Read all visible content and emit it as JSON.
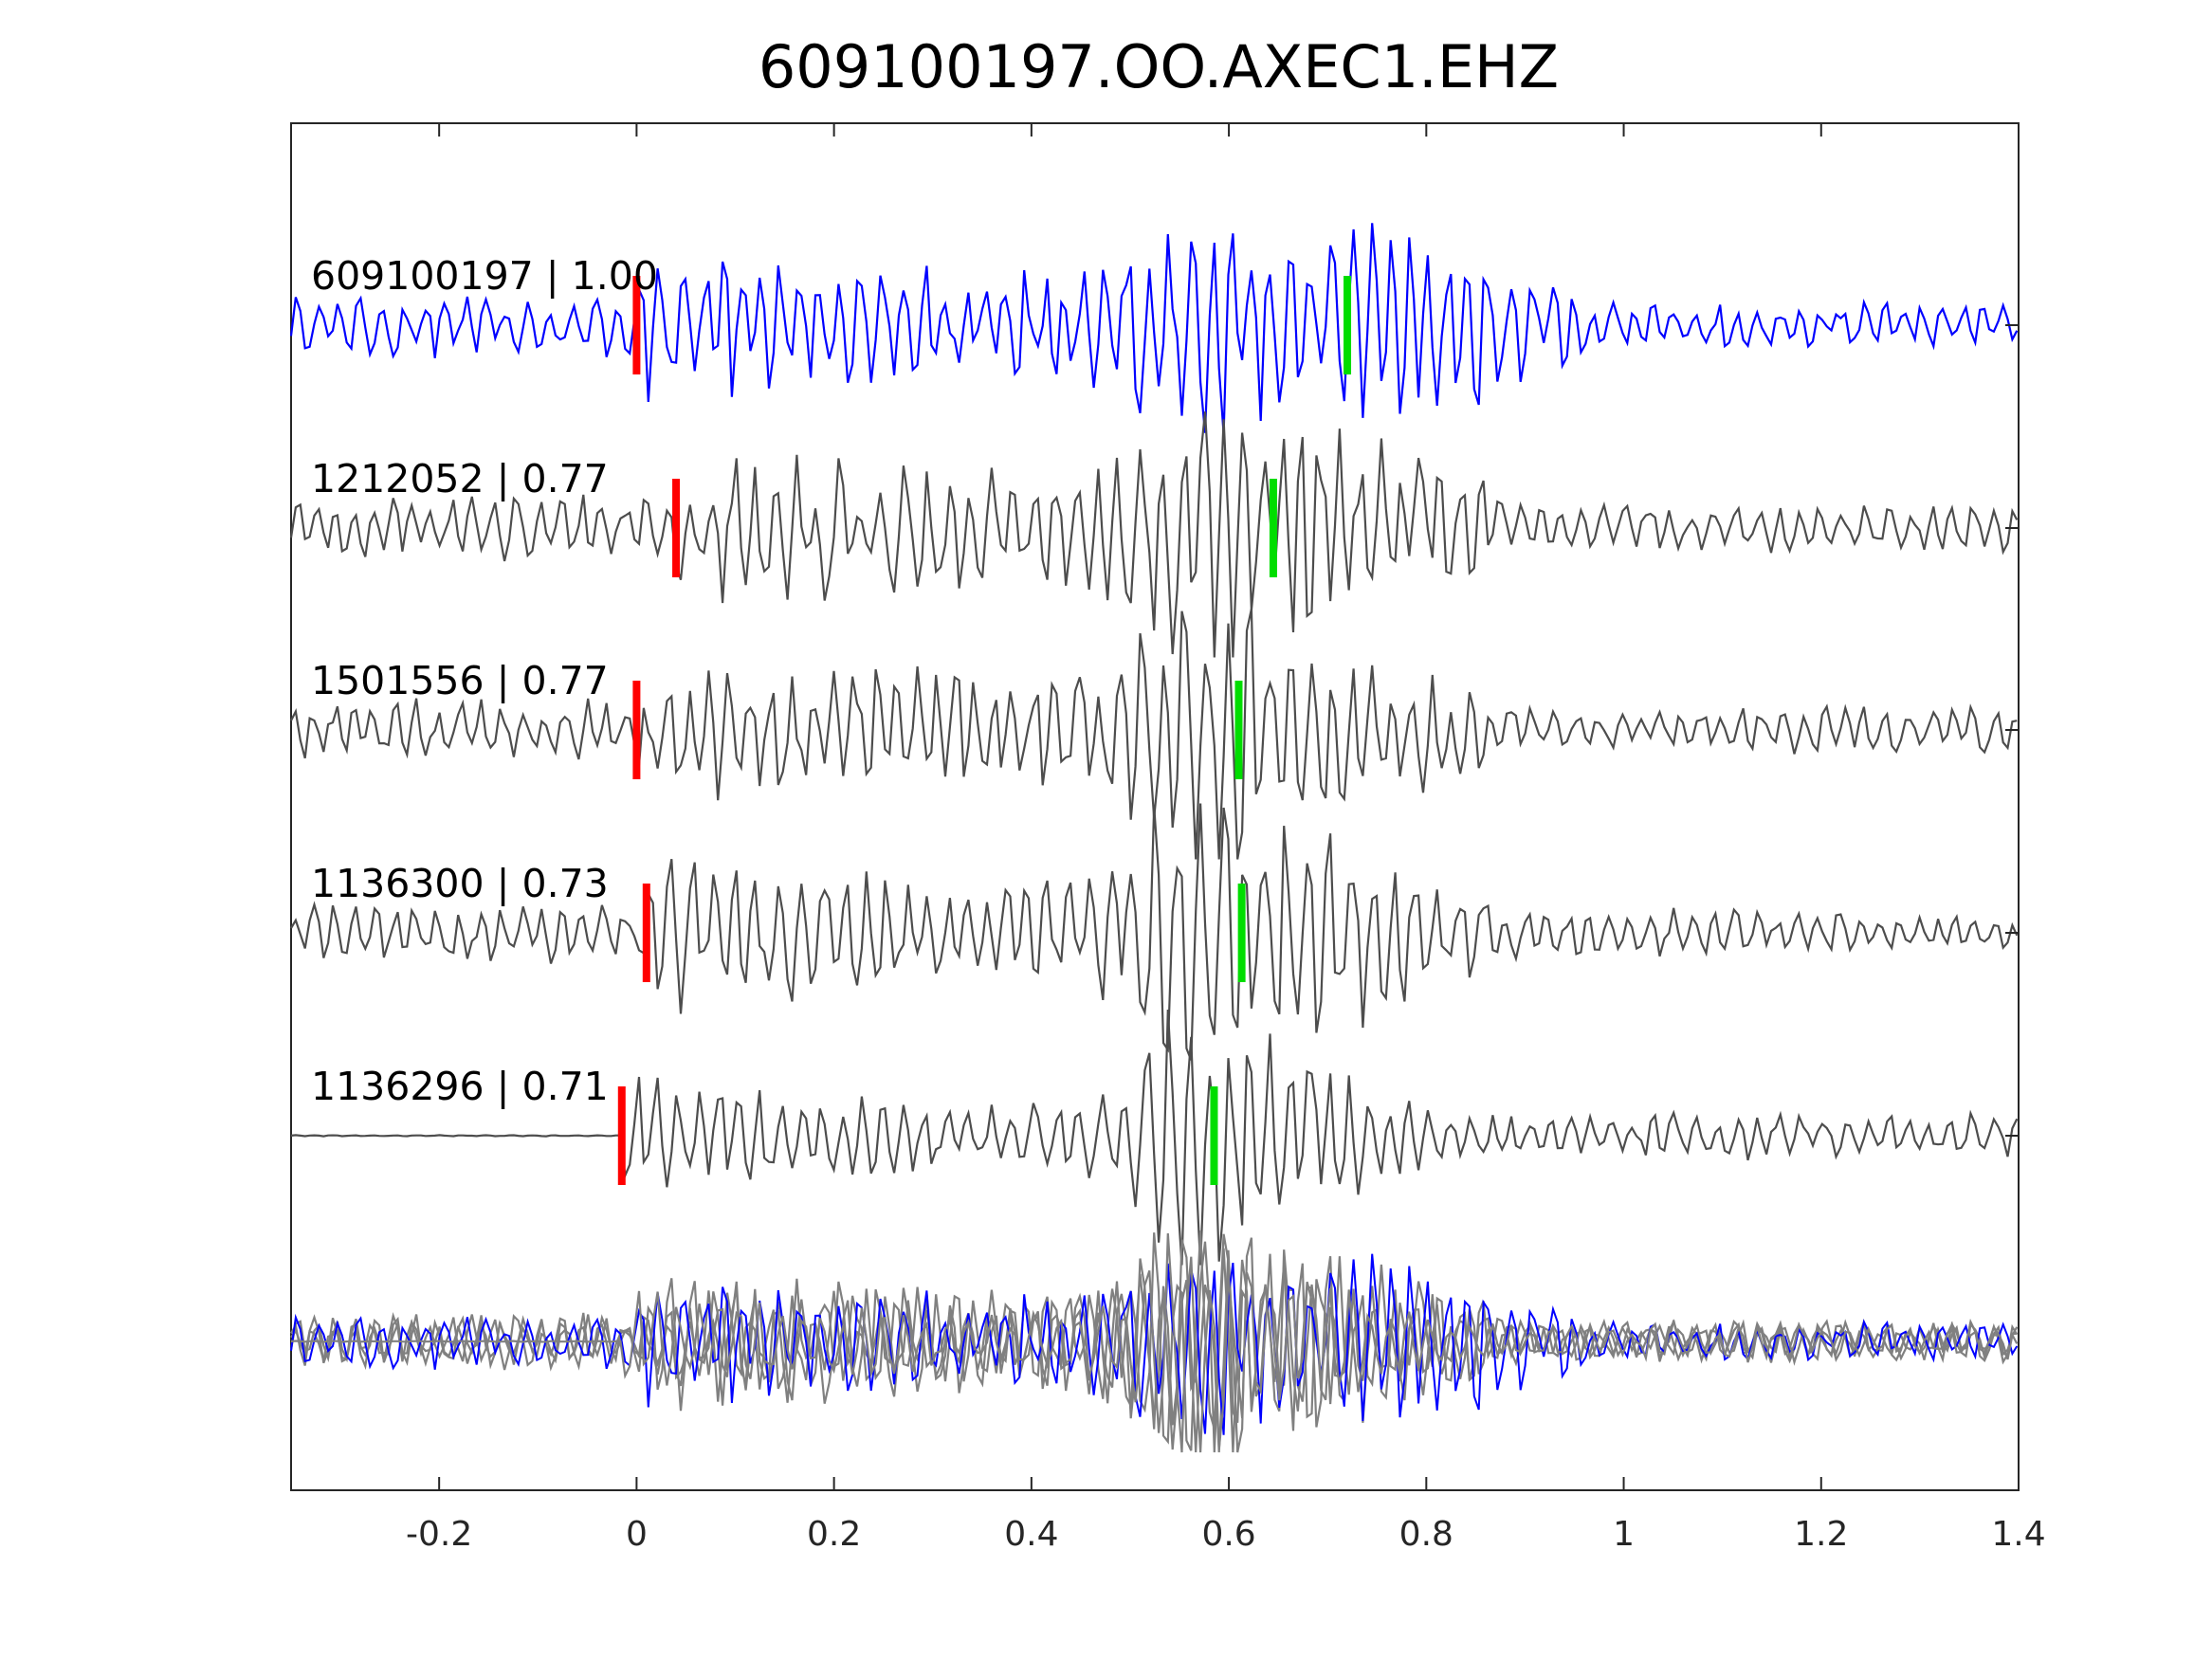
{
  "chart_data": {
    "type": "line",
    "title": "609100197.OO.AXEC1.EHZ",
    "xlabel": "",
    "ylabel": "",
    "xlim": [
      -0.35,
      1.4
    ],
    "grid": false,
    "xticks": [
      {
        "value": -0.2,
        "label": "-0.2"
      },
      {
        "value": 0,
        "label": "0"
      },
      {
        "value": 0.2,
        "label": "0.2"
      },
      {
        "value": 0.4,
        "label": "0.4"
      },
      {
        "value": 0.6,
        "label": "0.6"
      },
      {
        "value": 0.8,
        "label": "0.8"
      },
      {
        "value": 1,
        "label": "1"
      },
      {
        "value": 1.2,
        "label": "1.2"
      },
      {
        "value": 1.4,
        "label": "1.4"
      }
    ],
    "series": [
      {
        "label": "609100197 | 1.00",
        "color": "#0000ff",
        "p_pick": 0.0,
        "s_pick": 0.72
      },
      {
        "label": "1212052 | 0.77",
        "color": "#4d4d4d",
        "p_pick": 0.04,
        "s_pick": 0.645
      },
      {
        "label": "1501556 | 0.77",
        "color": "#4d4d4d",
        "p_pick": 0.0,
        "s_pick": 0.61
      },
      {
        "label": "1136300 | 0.73",
        "color": "#4d4d4d",
        "p_pick": 0.01,
        "s_pick": 0.613
      },
      {
        "label": "1136296 | 0.71",
        "color": "#4d4d4d",
        "p_pick": -0.015,
        "s_pick": 0.585
      }
    ],
    "overlay_color": "#808080",
    "p_pick_color": "#ff0000",
    "s_pick_color": "#00dd00"
  }
}
